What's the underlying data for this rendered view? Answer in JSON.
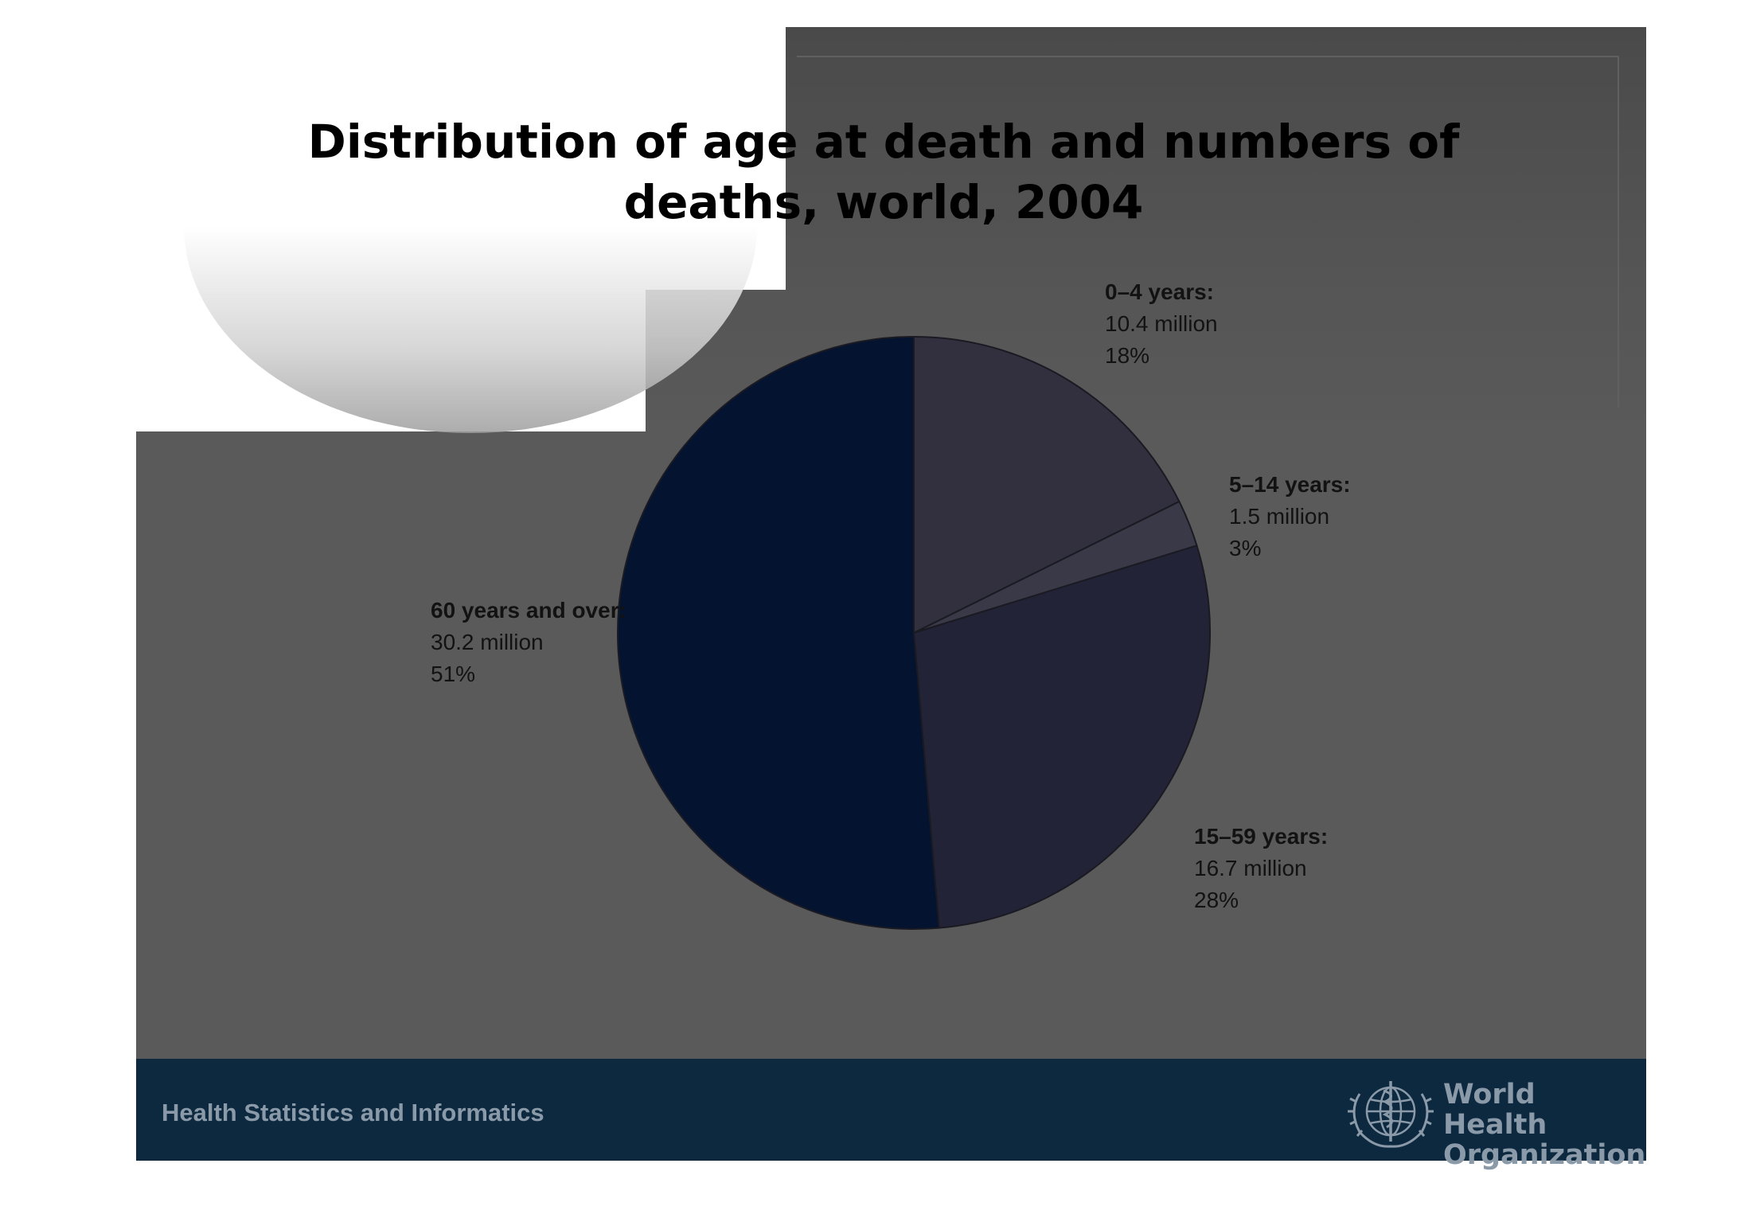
{
  "slide": {
    "title_line1": "Distribution of age at death and numbers of",
    "title_line2": "deaths, world, 2004"
  },
  "chart_data": {
    "type": "pie",
    "title": "Distribution of age at death and numbers of deaths, world, 2004",
    "slices": [
      {
        "label": "0–4 years:",
        "value_text": "10.4 million",
        "percent_text": "18%",
        "value": 10.4,
        "percent": 18,
        "color": "#32303f"
      },
      {
        "label": "5–14 years:",
        "value_text": "1.5 million",
        "percent_text": "3%",
        "value": 1.5,
        "percent": 3,
        "color": "#3a3947"
      },
      {
        "label": "15–59 years:",
        "value_text": "16.7 million",
        "percent_text": "28%",
        "value": 16.7,
        "percent": 28,
        "color": "#222337"
      },
      {
        "label": "60 years and over:",
        "value_text": "30.2 million",
        "percent_text": "51%",
        "value": 30.2,
        "percent": 51,
        "color": "#031330"
      }
    ],
    "start_angle_deg": 0,
    "direction": "clockwise"
  },
  "footer": {
    "left_text": "Health Statistics and Informatics",
    "org_line1": "World Health",
    "org_line2": "Organization",
    "logo_icon": "who-emblem-icon",
    "background_color": "#0d2940",
    "text_color": "#8b9aa8"
  },
  "colors": {
    "slide_background": "#5a5a5a",
    "page_background": "#ffffff"
  }
}
